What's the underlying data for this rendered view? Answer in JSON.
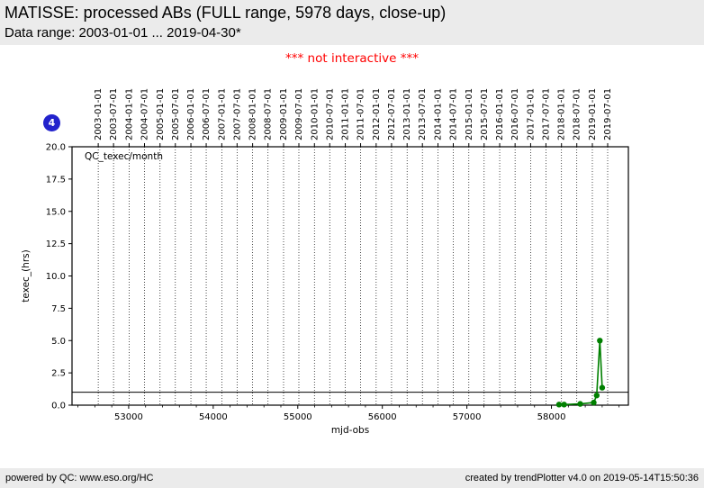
{
  "header": {
    "title": "MATISSE: processed ABs (FULL range, 5978 days, close-up)",
    "subtitle": "Data range: 2003-01-01 ... 2019-04-30*"
  },
  "notice": {
    "text": "*** not interactive ***",
    "color": "#ff0000"
  },
  "badge": {
    "value": "4",
    "color": "#2222cc"
  },
  "footer": {
    "left": "powered by QC: www.eso.org/HC",
    "right": "created by trendPlotter v4.0 on 2019-05-14T15:50:36"
  },
  "chart_data": {
    "type": "line",
    "legend_label": "QC_texec/month",
    "legend_position": "upper-left-inside",
    "xlabel": "mjd-obs",
    "ylabel": "texec_(hrs)",
    "xlim": [
      52330,
      58910
    ],
    "ylim": [
      0,
      20
    ],
    "x_major_ticks": [
      53000,
      54000,
      55000,
      56000,
      57000,
      58000
    ],
    "x_minor_step": 200,
    "y_ticks": [
      0,
      2.5,
      5,
      7.5,
      10,
      12.5,
      15,
      17.5,
      20
    ],
    "threshold_line_y": 1.0,
    "grid": "vertical-dotted-at-date-ticks",
    "top_axis": {
      "dates": [
        "2003-01-01",
        "2003-07-01",
        "2004-01-01",
        "2004-07-01",
        "2005-01-01",
        "2005-07-01",
        "2006-01-01",
        "2006-07-01",
        "2007-01-01",
        "2007-07-01",
        "2008-01-01",
        "2008-07-01",
        "2009-01-01",
        "2009-07-01",
        "2010-01-01",
        "2010-07-01",
        "2011-01-01",
        "2011-07-01",
        "2012-01-01",
        "2012-07-01",
        "2013-01-01",
        "2013-07-01",
        "2014-01-01",
        "2014-07-01",
        "2015-01-01",
        "2015-07-01",
        "2016-01-01",
        "2016-07-01",
        "2017-01-01",
        "2017-07-01",
        "2018-01-01",
        "2018-07-01",
        "2019-01-01",
        "2019-07-01"
      ],
      "mjd": [
        52640,
        52821,
        53005,
        53187,
        53371,
        53552,
        53736,
        53917,
        54101,
        54282,
        54466,
        54648,
        54832,
        55013,
        55197,
        55378,
        55562,
        55743,
        55927,
        56109,
        56293,
        56474,
        56658,
        56839,
        57023,
        57204,
        57388,
        57570,
        57754,
        57935,
        58119,
        58300,
        58484,
        58665
      ]
    },
    "series": [
      {
        "name": "QC_texec/month",
        "color": "#008000",
        "marker": "circle",
        "points_mjd_hrs": [
          [
            58090,
            0.05
          ],
          [
            58150,
            0.05
          ],
          [
            58340,
            0.1
          ],
          [
            58500,
            0.2
          ],
          [
            58535,
            0.75
          ],
          [
            58572,
            5.0
          ],
          [
            58600,
            1.35
          ]
        ]
      }
    ]
  }
}
